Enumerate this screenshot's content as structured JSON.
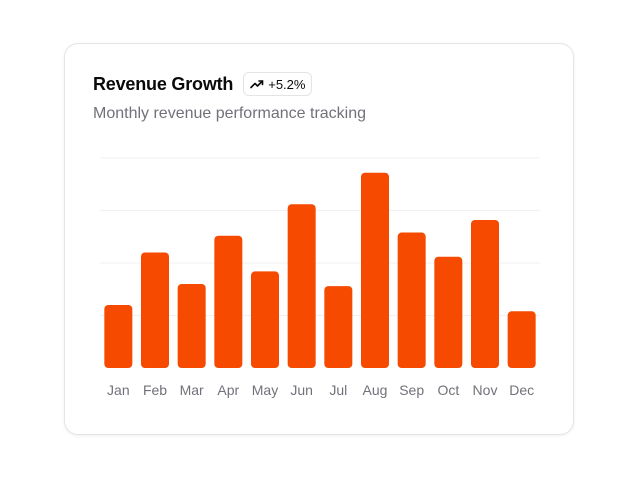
{
  "card": {
    "title": "Revenue Growth",
    "badge_text": "+5.2%",
    "badge_icon": "trending-up-icon",
    "subtitle": "Monthly revenue performance tracking"
  },
  "colors": {
    "bar": "#f54a00",
    "grid": "#f1f1f3",
    "muted_text": "#71717a"
  },
  "chart_data": {
    "type": "bar",
    "categories": [
      "Jan",
      "Feb",
      "Mar",
      "Apr",
      "May",
      "Jun",
      "Jul",
      "Aug",
      "Sep",
      "Oct",
      "Nov",
      "Dec"
    ],
    "values": [
      60,
      110,
      80,
      126,
      92,
      156,
      78,
      186,
      129,
      106,
      141,
      54
    ],
    "ylim": [
      0,
      200
    ],
    "grid": true,
    "xlabel": "",
    "ylabel": ""
  }
}
